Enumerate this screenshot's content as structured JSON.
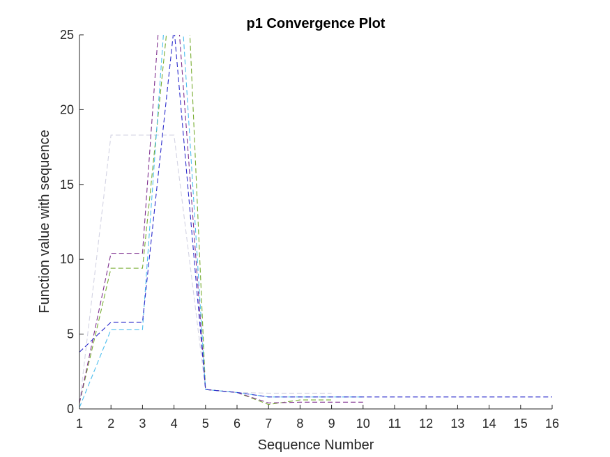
{
  "chart_data": {
    "type": "line",
    "title": "p1 Convergence Plot",
    "xlabel": "Sequence Number",
    "ylabel": "Function value with sequence",
    "xlim": [
      1,
      16
    ],
    "ylim": [
      0,
      25
    ],
    "xticks": [
      1,
      2,
      3,
      4,
      5,
      6,
      7,
      8,
      9,
      10,
      11,
      12,
      13,
      14,
      15,
      16
    ],
    "yticks": [
      0,
      5,
      10,
      15,
      20,
      25
    ],
    "grid": false,
    "legend": "none",
    "series": [
      {
        "color": "#d3d3e3",
        "x": [
          1,
          2,
          3,
          4,
          5,
          6,
          7,
          8,
          9
        ],
        "y": [
          0.3,
          18.3,
          18.3,
          18.3,
          1.3,
          1.1,
          1.05,
          1.05,
          1.05
        ]
      },
      {
        "color": "#77ac30",
        "x": [
          1,
          2,
          3,
          4,
          4.5,
          5,
          6,
          7,
          8,
          9
        ],
        "y": [
          0.4,
          9.4,
          9.4,
          30,
          25.2,
          1.3,
          1.1,
          0.3,
          0.6,
          0.6
        ]
      },
      {
        "color": "#7e2f8e",
        "x": [
          1,
          2,
          3,
          3.5,
          4,
          5,
          6,
          7,
          8,
          9,
          10
        ],
        "y": [
          0.4,
          10.4,
          10.4,
          25.2,
          30,
          1.3,
          1.1,
          0.4,
          0.45,
          0.45,
          0.45
        ]
      },
      {
        "color": "#4dbeee",
        "x": [
          1,
          2,
          3,
          4,
          5,
          6,
          7,
          8,
          9,
          10
        ],
        "y": [
          0.1,
          5.3,
          5.3,
          35,
          1.3,
          1.1,
          0.8,
          0.8,
          0.8,
          0.8
        ]
      },
      {
        "color": "#2b2bcc",
        "x": [
          1,
          2,
          3,
          4,
          5,
          6,
          7,
          8,
          9,
          10,
          11,
          12,
          13,
          14,
          15,
          16
        ],
        "y": [
          3.8,
          5.8,
          5.8,
          25.5,
          1.3,
          1.1,
          0.8,
          0.8,
          0.8,
          0.8,
          0.8,
          0.8,
          0.8,
          0.8,
          0.8,
          0.8
        ]
      }
    ]
  }
}
